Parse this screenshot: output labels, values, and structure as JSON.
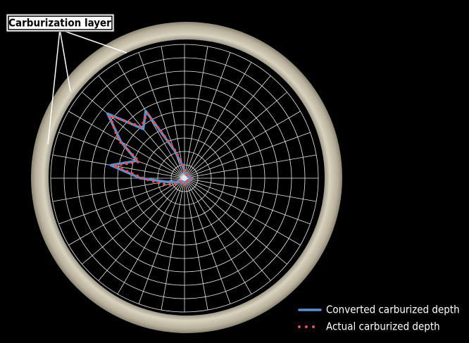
{
  "chart_data": {
    "type": "polar",
    "annotation": "Carburization layer",
    "theta": [
      0,
      10,
      20,
      30,
      40,
      50,
      60,
      70,
      80,
      90,
      100,
      110,
      120,
      130,
      140,
      150,
      160,
      170,
      180,
      190,
      200,
      210,
      220,
      230,
      240,
      250,
      260,
      270,
      280,
      290,
      300,
      310,
      320,
      330,
      340,
      350
    ],
    "rlim": [
      0,
      10
    ],
    "rticks": [
      1,
      2,
      3,
      4,
      5,
      6,
      7,
      8,
      9,
      10
    ],
    "grid": true,
    "legend": "bottom-right",
    "series": [
      {
        "name": "Converted carburized depth",
        "color": "#5b8fd0",
        "style": "solid",
        "values": [
          0.6,
          0.4,
          0.3,
          0.3,
          0.3,
          0.3,
          0.3,
          0.3,
          0.4,
          0.5,
          1.0,
          2.2,
          5.8,
          4.8,
          7.5,
          5.5,
          3.8,
          5.6,
          3.3,
          1.5,
          0.9,
          0.6,
          0.4,
          0.3,
          0.3,
          0.3,
          0.3,
          0.4,
          0.3,
          0.3,
          0.3,
          0.3,
          0.3,
          0.3,
          0.4,
          0.5
        ]
      },
      {
        "name": "Actual carburized depth",
        "color": "#e0534f",
        "style": "dotted",
        "values": [
          0.5,
          0.4,
          0.3,
          0.3,
          0.3,
          0.3,
          0.3,
          0.3,
          0.4,
          0.6,
          1.2,
          2.4,
          5.6,
          5.0,
          7.3,
          5.7,
          3.6,
          5.4,
          3.1,
          2.0,
          1.4,
          0.9,
          0.5,
          0.3,
          0.3,
          0.3,
          0.3,
          0.5,
          0.3,
          0.3,
          0.3,
          0.3,
          0.3,
          0.3,
          0.4,
          0.5
        ]
      }
    ]
  }
}
